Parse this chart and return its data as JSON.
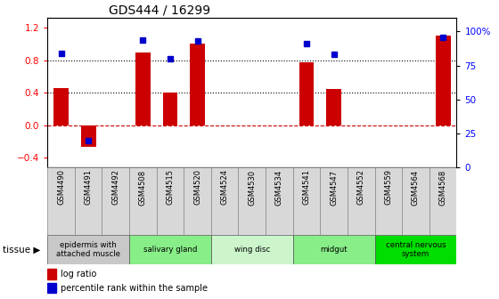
{
  "title": "GDS444 / 16299",
  "samples": [
    "GSM4490",
    "GSM4491",
    "GSM4492",
    "GSM4508",
    "GSM4515",
    "GSM4520",
    "GSM4524",
    "GSM4530",
    "GSM4534",
    "GSM4541",
    "GSM4547",
    "GSM4552",
    "GSM4559",
    "GSM4564",
    "GSM4568"
  ],
  "log_ratio": [
    0.46,
    -0.27,
    0.0,
    0.9,
    0.4,
    1.0,
    0.0,
    0.0,
    0.0,
    0.77,
    0.45,
    0.0,
    0.0,
    0.0,
    1.1
  ],
  "percentile": [
    84,
    20,
    null,
    94,
    80,
    93,
    null,
    null,
    null,
    91,
    83,
    null,
    null,
    null,
    96
  ],
  "tissues": [
    {
      "label": "epidermis with\nattached muscle",
      "start": 0,
      "end": 3,
      "color": "#c8c8c8"
    },
    {
      "label": "salivary gland",
      "start": 3,
      "end": 6,
      "color": "#88ee88"
    },
    {
      "label": "wing disc",
      "start": 6,
      "end": 9,
      "color": "#ccf5cc"
    },
    {
      "label": "midgut",
      "start": 9,
      "end": 12,
      "color": "#88ee88"
    },
    {
      "label": "central nervous\nsystem",
      "start": 12,
      "end": 15,
      "color": "#00dd00"
    }
  ],
  "ylim_left": [
    -0.52,
    1.32
  ],
  "ylim_right": [
    0,
    110
  ],
  "yticks_left": [
    -0.4,
    0.0,
    0.4,
    0.8,
    1.2
  ],
  "yticks_right": [
    0,
    25,
    50,
    75,
    100
  ],
  "ytick_labels_right": [
    "0",
    "25",
    "50",
    "75",
    "100%"
  ],
  "dotted_lines": [
    0.4,
    0.8
  ],
  "bar_color": "#cc0000",
  "dot_color": "#0000cc",
  "zero_line_color": "#cc0000",
  "sample_box_color": "#d8d8d8"
}
